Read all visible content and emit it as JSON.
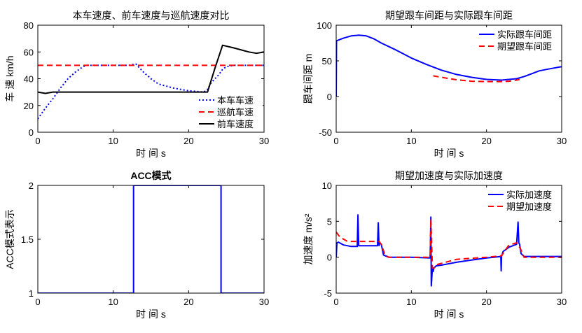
{
  "chart_data": [
    {
      "type": "line",
      "title": "本车速度、前车速度与巡航速度对比",
      "xlabel": "时 间 s",
      "ylabel": "车 速 km/h",
      "xlim": [
        0,
        30
      ],
      "ylim": [
        0,
        80
      ],
      "xticks": [
        "0",
        "10",
        "20",
        "30"
      ],
      "yticks": [
        "0",
        "20",
        "40",
        "60",
        "80"
      ],
      "legend_position": "bottom-right",
      "series": [
        {
          "name": "本车车速",
          "color": "#0000ff",
          "style": "dotted",
          "x": [
            0,
            1,
            2,
            3,
            4,
            5,
            6,
            6.5,
            8,
            10,
            12,
            13,
            14,
            15,
            16,
            18,
            20,
            22,
            22.5,
            23,
            24,
            24.5,
            25,
            26,
            28,
            30
          ],
          "y": [
            10,
            18,
            25,
            33,
            40,
            45,
            49,
            50,
            50,
            50,
            50,
            51,
            45,
            40,
            36,
            33,
            31,
            30,
            32,
            37,
            43,
            47,
            49,
            50,
            50,
            50
          ]
        },
        {
          "name": "巡航车速",
          "color": "#ff0000",
          "style": "dashed",
          "x": [
            0,
            30
          ],
          "y": [
            50,
            50
          ]
        },
        {
          "name": "前车速度",
          "color": "#000000",
          "style": "solid",
          "x": [
            0,
            1,
            2,
            5,
            10,
            15,
            20,
            22.5,
            23.5,
            24.5,
            26,
            28,
            29,
            30
          ],
          "y": [
            30,
            29,
            30,
            30,
            30,
            30,
            30,
            30,
            48,
            65,
            63,
            60,
            59,
            60
          ]
        }
      ]
    },
    {
      "type": "line",
      "title": "期望跟车间距与实际跟车间距",
      "xlabel": "时 间 s",
      "ylabel": "跟车间距  m",
      "xlim": [
        0,
        30
      ],
      "ylim": [
        -50,
        100
      ],
      "xticks": [
        "0",
        "10",
        "20",
        "30"
      ],
      "yticks": [
        "-50",
        "0",
        "50",
        "100"
      ],
      "legend_position": "top-right",
      "series": [
        {
          "name": "实际跟车间距",
          "color": "#0000ff",
          "style": "solid",
          "x": [
            0,
            0.05,
            0.5,
            1,
            2,
            3,
            4,
            5,
            6,
            8,
            10,
            12,
            14,
            16,
            18,
            20,
            22,
            23,
            24,
            25,
            26,
            27,
            28,
            29,
            30
          ],
          "y": [
            0,
            78,
            80,
            82,
            85,
            86,
            85,
            81,
            75,
            65,
            54,
            45,
            37,
            31,
            27,
            24,
            23,
            24,
            25,
            28,
            32,
            36,
            38,
            40,
            42
          ]
        },
        {
          "name": "期望跟车间距",
          "color": "#ff0000",
          "style": "dashed",
          "x": [
            12.9,
            14,
            16,
            18,
            20,
            22,
            23,
            24,
            24.4
          ],
          "y": [
            29,
            27,
            23.5,
            21.5,
            21,
            21,
            21.5,
            23,
            24
          ]
        }
      ]
    },
    {
      "type": "line",
      "title": "ACC模式",
      "xlabel": "时 间 s",
      "ylabel": "ACC模式表示",
      "xlim": [
        0,
        30
      ],
      "ylim": [
        1,
        2
      ],
      "xticks": [
        "0",
        "10",
        "20",
        "30"
      ],
      "yticks": [
        "1",
        "1.5",
        "2"
      ],
      "series": [
        {
          "color": "#0000ff",
          "style": "solid",
          "x": [
            0,
            12.7,
            12.7,
            24.3,
            24.3,
            30
          ],
          "y": [
            1,
            1,
            2,
            2,
            1,
            1
          ]
        }
      ]
    },
    {
      "type": "line",
      "title": "期望加速度与实际加速度",
      "xlabel": "时 间 s",
      "ylabel": "加速度  m/s²",
      "xlim": [
        0,
        30
      ],
      "ylim": [
        -5,
        10
      ],
      "xticks": [
        "0",
        "10",
        "20",
        "30"
      ],
      "yticks": [
        "-5",
        "0",
        "5",
        "10"
      ],
      "legend_position": "top-right",
      "series": [
        {
          "name": "实际加速度",
          "color": "#0000ff",
          "style": "solid",
          "x": [
            0,
            0.1,
            0.3,
            1,
            2,
            2.8,
            2.9,
            3,
            3.1,
            3.5,
            5,
            5.5,
            5.6,
            5.7,
            5.8,
            6,
            6.3,
            7,
            10,
            12.5,
            12.6,
            12.65,
            12.8,
            12.9,
            13,
            13.3,
            14,
            16,
            18,
            20,
            21,
            21.9,
            21.95,
            22,
            22.2,
            22.6,
            23,
            24,
            24.2,
            24.3,
            24.4,
            24.6,
            25,
            27,
            30
          ],
          "y": [
            0,
            2,
            2.1,
            1.7,
            1.5,
            1.5,
            5.9,
            1.6,
            1.6,
            1.6,
            1.6,
            1.6,
            4.8,
            1.6,
            2,
            1.8,
            0.3,
            0,
            0,
            -0.1,
            5.6,
            -4,
            -1.5,
            -2,
            -1.5,
            -1.2,
            -1.1,
            -0.7,
            -0.4,
            -0.1,
            0,
            0.1,
            -1.9,
            0.1,
            0.8,
            1.1,
            1.4,
            1.8,
            4.9,
            2,
            1.8,
            0.5,
            0.1,
            0.1,
            0.1
          ]
        },
        {
          "name": "期望加速度",
          "color": "#ff0000",
          "style": "dashed",
          "x": [
            0,
            0.5,
            1.5,
            3,
            5,
            5.7,
            6,
            6.5,
            7,
            10,
            12.5,
            12.6,
            12.8,
            13,
            13.5,
            16,
            20,
            22,
            22.5,
            23,
            24,
            24.5,
            25,
            27,
            30
          ],
          "y": [
            3.5,
            2.8,
            2.2,
            2.2,
            2.2,
            2.2,
            1.8,
            0.3,
            0,
            0,
            0,
            5.3,
            -1.5,
            -1.5,
            -1,
            -0.3,
            0,
            0.2,
            1,
            1.7,
            2,
            1.2,
            0,
            0,
            0
          ]
        }
      ]
    }
  ]
}
